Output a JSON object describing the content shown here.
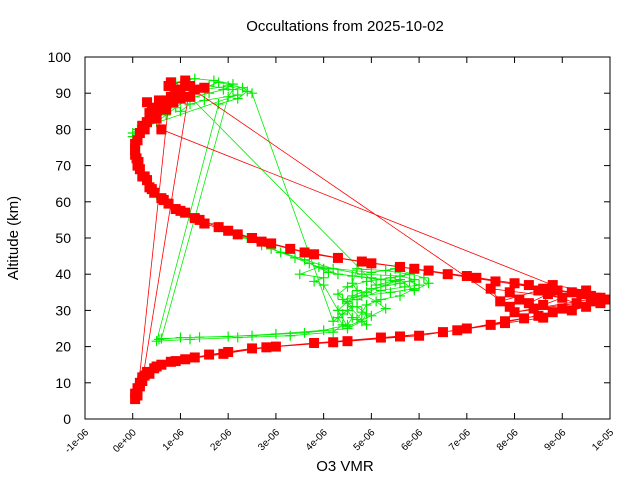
{
  "chart_data": {
    "type": "scatter",
    "title": "Occultations from 2025-10-02",
    "xlabel": "O3 VMR",
    "ylabel": "Altitude (km)",
    "xlim": [
      -1e-06,
      1e-05
    ],
    "ylim": [
      0,
      100
    ],
    "x_ticks": [
      {
        "value": -1e-06,
        "label": "-1e-06"
      },
      {
        "value": 0,
        "label": "0e+00"
      },
      {
        "value": 1e-06,
        "label": "1e-06"
      },
      {
        "value": 2e-06,
        "label": "2e-06"
      },
      {
        "value": 3e-06,
        "label": "3e-06"
      },
      {
        "value": 4e-06,
        "label": "4e-06"
      },
      {
        "value": 5e-06,
        "label": "5e-06"
      },
      {
        "value": 6e-06,
        "label": "6e-06"
      },
      {
        "value": 7e-06,
        "label": "7e-06"
      },
      {
        "value": 8e-06,
        "label": "8e-06"
      },
      {
        "value": 9e-06,
        "label": "9e-06"
      },
      {
        "value": 1e-05,
        "label": "1e-05"
      }
    ],
    "y_ticks": [
      {
        "value": 0,
        "label": "0"
      },
      {
        "value": 10,
        "label": "10"
      },
      {
        "value": 20,
        "label": "20"
      },
      {
        "value": 30,
        "label": "30"
      },
      {
        "value": 40,
        "label": "40"
      },
      {
        "value": 50,
        "label": "50"
      },
      {
        "value": 60,
        "label": "60"
      },
      {
        "value": 70,
        "label": "70"
      },
      {
        "value": 80,
        "label": "80"
      },
      {
        "value": 90,
        "label": "90"
      },
      {
        "value": 100,
        "label": "100"
      }
    ],
    "grid": false,
    "series": [
      {
        "color": "#00ee00",
        "marker": "plus",
        "points": [
          [
            5.5e-07,
            22
          ],
          [
            1e-06,
            22.5
          ],
          [
            2e-06,
            22.8
          ],
          [
            3e-06,
            23.5
          ],
          [
            4e-06,
            24.5
          ],
          [
            4.5e-06,
            26
          ],
          [
            4.6e-06,
            28
          ],
          [
            4.5e-06,
            30
          ],
          [
            4.5e-06,
            32
          ],
          [
            4.6e-06,
            34
          ],
          [
            5e-06,
            36
          ],
          [
            5.6e-06,
            37.5
          ],
          [
            5.9e-06,
            38.5
          ],
          [
            5.6e-06,
            39.5
          ],
          [
            4.8e-06,
            40
          ],
          [
            4.2e-06,
            41.5
          ],
          [
            3.6e-06,
            44
          ],
          [
            2.9e-06,
            47
          ],
          [
            2.2e-06,
            51
          ],
          [
            1.6e-06,
            54
          ],
          [
            1e-06,
            57
          ],
          [
            6e-07,
            61
          ],
          [
            3.5e-07,
            65
          ],
          [
            1.5e-07,
            70
          ],
          [
            5e-08,
            75
          ],
          [
            0.0,
            79
          ],
          [
            3e-07,
            83
          ],
          [
            8e-07,
            87
          ],
          [
            1.5e-06,
            91
          ],
          [
            2e-06,
            92
          ],
          [
            2.4e-06,
            90.5
          ],
          [
            2.2e-06,
            88.5
          ],
          [
            1.8e-06,
            87
          ],
          [
            5e-07,
            21.5
          ],
          [
            1.2e-06,
            22
          ],
          [
            2.2e-06,
            22.5
          ],
          [
            3.3e-06,
            23
          ],
          [
            4.2e-06,
            24
          ],
          [
            4.4e-06,
            26
          ],
          [
            4.3e-06,
            28
          ],
          [
            4.3e-06,
            30
          ],
          [
            4.5e-06,
            32.5
          ],
          [
            4.9e-06,
            35
          ],
          [
            5.3e-06,
            37
          ],
          [
            5.5e-06,
            38
          ],
          [
            5e-06,
            39
          ],
          [
            4.3e-06,
            40
          ],
          [
            4e-06,
            41.5
          ],
          [
            3.4e-06,
            44.5
          ],
          [
            2.7e-06,
            48
          ],
          [
            2e-06,
            52
          ],
          [
            1.4e-06,
            55
          ],
          [
            9e-07,
            58
          ],
          [
            5e-07,
            62
          ],
          [
            3e-07,
            66
          ],
          [
            1e-07,
            71
          ],
          [
            5e-08,
            76
          ],
          [
            1e-07,
            80
          ],
          [
            5e-07,
            84
          ],
          [
            1e-06,
            88
          ],
          [
            1.6e-06,
            92
          ],
          [
            2.1e-06,
            91
          ],
          [
            2e-06,
            89
          ],
          [
            6e-07,
            22.2
          ],
          [
            1.4e-06,
            22.6
          ],
          [
            2.5e-06,
            23
          ],
          [
            3.6e-06,
            23.8
          ],
          [
            4.5e-06,
            25
          ],
          [
            4.8e-06,
            27
          ],
          [
            4.9e-06,
            29
          ],
          [
            4.7e-06,
            31
          ],
          [
            4.7e-06,
            33
          ],
          [
            5.2e-06,
            35.5
          ],
          [
            5.7e-06,
            36.5
          ],
          [
            6e-06,
            37
          ],
          [
            5.8e-06,
            38
          ],
          [
            5.2e-06,
            38.5
          ],
          [
            4.6e-06,
            39.5
          ],
          [
            4.1e-06,
            40.5
          ],
          [
            3.7e-06,
            43
          ],
          [
            3.1e-06,
            46
          ],
          [
            2.4e-06,
            50
          ],
          [
            1.8e-06,
            53
          ],
          [
            1.2e-06,
            56
          ],
          [
            7e-07,
            60
          ],
          [
            4e-07,
            64
          ],
          [
            2e-07,
            68
          ],
          [
            5e-08,
            73
          ],
          [
            0.0,
            78
          ],
          [
            2e-07,
            82
          ],
          [
            6e-07,
            86
          ],
          [
            1.2e-06,
            90
          ],
          [
            1.8e-06,
            93
          ],
          [
            2.3e-06,
            91.5
          ],
          [
            2.5e-06,
            90
          ],
          [
            4.2e-06,
            27
          ],
          [
            4.4e-06,
            29
          ],
          [
            4.6e-06,
            31
          ],
          [
            4.4e-06,
            33
          ],
          [
            4.8e-06,
            34
          ],
          [
            5.4e-06,
            35
          ],
          [
            5.9e-06,
            36
          ],
          [
            5.6e-06,
            34
          ],
          [
            5.2e-06,
            33
          ],
          [
            4.9e-06,
            31.5
          ],
          [
            4.8e-06,
            29.5
          ],
          [
            4.7e-06,
            27.5
          ],
          [
            4.9e-06,
            26
          ],
          [
            4.3e-06,
            34.5
          ],
          [
            4.5e-06,
            36.5
          ],
          [
            4.9e-06,
            38
          ],
          [
            5.4e-06,
            39
          ],
          [
            5.8e-06,
            40
          ],
          [
            5.3e-06,
            41
          ],
          [
            4.7e-06,
            41.5
          ],
          [
            4.6e-06,
            37.5
          ],
          [
            4.7e-06,
            35.5
          ],
          [
            5.1e-06,
            32.5
          ],
          [
            5.3e-06,
            30.5
          ],
          [
            5e-06,
            28.5
          ],
          [
            4.5e-06,
            25.5
          ],
          [
            4e-06,
            37
          ],
          [
            3.8e-06,
            38
          ],
          [
            4e-06,
            39
          ],
          [
            3.5e-06,
            40
          ],
          [
            3.9e-06,
            42
          ],
          [
            5e-06,
            40.5
          ],
          [
            5.5e-06,
            41.5
          ],
          [
            6.1e-06,
            39
          ],
          [
            6.2e-06,
            37.5
          ],
          [
            5.9e-06,
            35.5
          ],
          [
            5.6e-06,
            38.5
          ],
          [
            5.1e-06,
            37
          ],
          [
            9e-07,
            93
          ],
          [
            1.3e-06,
            94
          ],
          [
            1.7e-06,
            93.5
          ],
          [
            2.1e-06,
            92.5
          ],
          [
            1.9e-06,
            91
          ],
          [
            1.6e-06,
            90
          ],
          [
            1.3e-06,
            89
          ],
          [
            1.1e-06,
            88
          ],
          [
            9e-07,
            86
          ],
          [
            7e-07,
            84
          ],
          [
            5e-07,
            82
          ],
          [
            2e-07,
            80.5
          ],
          [
            2.2e-06,
            89.5
          ],
          [
            1.5e-06,
            88
          ],
          [
            1.2e-06,
            87
          ],
          [
            1e-06,
            85
          ]
        ]
      },
      {
        "color": "#ff0000",
        "marker": "square",
        "points": [
          [
            5e-08,
            5.5
          ],
          [
            5e-08,
            7
          ],
          [
            1e-07,
            8.5
          ],
          [
            1.5e-07,
            10
          ],
          [
            2e-07,
            11.5
          ],
          [
            3e-07,
            13
          ],
          [
            5e-07,
            14.5
          ],
          [
            8e-07,
            15.8
          ],
          [
            1.3e-06,
            17
          ],
          [
            2e-06,
            18.5
          ],
          [
            3e-06,
            20
          ],
          [
            4.5e-06,
            21.5
          ],
          [
            6e-06,
            23
          ],
          [
            7e-06,
            25
          ],
          [
            7.8e-06,
            27
          ],
          [
            8.5e-06,
            28.5
          ],
          [
            9.2e-06,
            30
          ],
          [
            9.8e-06,
            32
          ],
          [
            9.9e-06,
            33
          ],
          [
            9.4e-06,
            34.5
          ],
          [
            8.6e-06,
            36
          ],
          [
            7.6e-06,
            38
          ],
          [
            6.6e-06,
            40
          ],
          [
            5.6e-06,
            42
          ],
          [
            4.3e-06,
            44.5
          ],
          [
            3.3e-06,
            47
          ],
          [
            2.5e-06,
            50
          ],
          [
            1.8e-06,
            53
          ],
          [
            1.3e-06,
            55.5
          ],
          [
            9e-07,
            58
          ],
          [
            6e-07,
            61
          ],
          [
            3.5e-07,
            64
          ],
          [
            2e-07,
            67
          ],
          [
            1e-07,
            70
          ],
          [
            5e-08,
            73
          ],
          [
            5e-08,
            76
          ],
          [
            1.5e-07,
            79
          ],
          [
            3e-07,
            82
          ],
          [
            5e-07,
            85
          ],
          [
            7e-07,
            88
          ],
          [
            1e-06,
            91
          ],
          [
            8e-07,
            93
          ],
          [
            1e-07,
            6.5
          ],
          [
            1.5e-07,
            9
          ],
          [
            2.5e-07,
            12
          ],
          [
            4.5e-07,
            14
          ],
          [
            9e-07,
            16
          ],
          [
            1.6e-06,
            17.8
          ],
          [
            2.5e-06,
            19.5
          ],
          [
            3.8e-06,
            21
          ],
          [
            5.2e-06,
            22.5
          ],
          [
            6.5e-06,
            24
          ],
          [
            7.5e-06,
            26
          ],
          [
            8.2e-06,
            27.8
          ],
          [
            8.8e-06,
            29.5
          ],
          [
            9.5e-06,
            31
          ],
          [
            9.7e-06,
            33.5
          ],
          [
            9.2e-06,
            35
          ],
          [
            8.3e-06,
            37
          ],
          [
            7.2e-06,
            39
          ],
          [
            6.2e-06,
            41
          ],
          [
            5e-06,
            43
          ],
          [
            3.8e-06,
            45.5
          ],
          [
            2.9e-06,
            48.5
          ],
          [
            2.2e-06,
            51
          ],
          [
            1.5e-06,
            54
          ],
          [
            1.1e-06,
            57
          ],
          [
            7.5e-07,
            59.5
          ],
          [
            4.5e-07,
            62.5
          ],
          [
            3e-07,
            66
          ],
          [
            1.5e-07,
            69
          ],
          [
            8e-08,
            72
          ],
          [
            1e-07,
            77
          ],
          [
            2.5e-07,
            80
          ],
          [
            4.5e-07,
            84
          ],
          [
            6.5e-07,
            87
          ],
          [
            9e-07,
            90
          ],
          [
            1.2e-06,
            92
          ],
          [
            2e-07,
            10.5
          ],
          [
            3.5e-07,
            12.5
          ],
          [
            6e-07,
            15
          ],
          [
            1.1e-06,
            16.5
          ],
          [
            1.9e-06,
            18
          ],
          [
            2.8e-06,
            19.8
          ],
          [
            4.2e-06,
            21.2
          ],
          [
            5.6e-06,
            22.8
          ],
          [
            6.8e-06,
            24.5
          ],
          [
            7.8e-06,
            26.5
          ],
          [
            8.6e-06,
            28
          ],
          [
            9e-06,
            30.5
          ],
          [
            9.6e-06,
            32.5
          ],
          [
            9.6e-06,
            34
          ],
          [
            8.9e-06,
            35.5
          ],
          [
            8e-06,
            37.5
          ],
          [
            7e-06,
            39.5
          ],
          [
            5.9e-06,
            41.5
          ],
          [
            4.8e-06,
            43.5
          ],
          [
            3.6e-06,
            46
          ],
          [
            2.7e-06,
            49
          ],
          [
            2e-06,
            52
          ],
          [
            1.4e-06,
            55
          ],
          [
            1e-06,
            57.5
          ],
          [
            6.5e-07,
            60.5
          ],
          [
            4e-07,
            63.5
          ],
          [
            2.5e-07,
            67
          ],
          [
            1.2e-07,
            71
          ],
          [
            5e-08,
            74.5
          ],
          [
            2e-07,
            81
          ],
          [
            4e-07,
            83
          ],
          [
            6e-07,
            86
          ],
          [
            8e-07,
            89
          ],
          [
            1.1e-06,
            92.5
          ],
          [
            7.9e-06,
            31
          ],
          [
            8.1e-06,
            33
          ],
          [
            7.9e-06,
            35
          ],
          [
            8.3e-06,
            32
          ],
          [
            8.7e-06,
            34.5
          ],
          [
            8.6e-06,
            31.5
          ],
          [
            9e-06,
            33.5
          ],
          [
            7.5e-06,
            36
          ],
          [
            7.7e-06,
            32.5
          ],
          [
            8.5e-06,
            35.5
          ],
          [
            9.3e-06,
            32
          ],
          [
            8e-06,
            29.5
          ],
          [
            8.4e-06,
            30.5
          ],
          [
            9.8e-06,
            33.5
          ],
          [
            9.5e-06,
            35.5
          ],
          [
            8.8e-06,
            37
          ],
          [
            6e-07,
            80
          ],
          [
            5e-07,
            83
          ],
          [
            7e-07,
            85.5
          ],
          [
            4e-07,
            86
          ],
          [
            8.5e-07,
            87.5
          ],
          [
            1e-06,
            88.5
          ],
          [
            1.2e-06,
            89
          ],
          [
            9e-07,
            90.5
          ],
          [
            7.5e-07,
            92
          ],
          [
            1.1e-06,
            93.5
          ],
          [
            1.3e-06,
            91
          ],
          [
            1.5e-06,
            91.5
          ],
          [
            5.5e-07,
            88
          ],
          [
            3.5e-07,
            84.5
          ],
          [
            3e-07,
            87.5
          ]
        ]
      }
    ]
  }
}
